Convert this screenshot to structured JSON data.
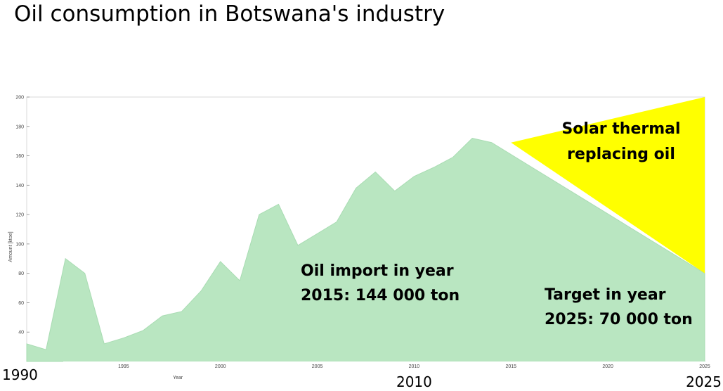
{
  "title": "Oil consumption in Botswana's industry",
  "chart_data": {
    "type": "area",
    "title": "Oil consumption in Botswana's industry",
    "xlabel": "Year",
    "ylabel": "Amount [ktoe]",
    "ylim": [
      20,
      200
    ],
    "y_ticks": [
      "40",
      "60",
      "80",
      "100",
      "120",
      "140",
      "160",
      "180",
      "200"
    ],
    "x_ticks_small": [
      "1995",
      "2000",
      "2005",
      "2010",
      "2015",
      "2020",
      "2025"
    ],
    "x_ticks_large": [
      "1990",
      "2010",
      "2025"
    ],
    "grid": false,
    "colors": {
      "area": "#b9e6c1",
      "solar": "#ffff00"
    },
    "series": [
      {
        "name": "Oil import",
        "x": [
          1990,
          1991,
          1992,
          1993,
          1994,
          1995,
          1996,
          1997,
          1998,
          1999,
          2000,
          2001,
          2002,
          2003,
          2004,
          2005,
          2006,
          2007,
          2008,
          2009,
          2010,
          2011,
          2012,
          2013,
          2014,
          2025
        ],
        "values": [
          32,
          28,
          90,
          80,
          32,
          36,
          41,
          51,
          54,
          68,
          88,
          75,
          120,
          127,
          99,
          107,
          115,
          138,
          149,
          136,
          146,
          152,
          159,
          172,
          169,
          80
        ]
      },
      {
        "name": "Solar thermal replacing oil",
        "x": [
          2015,
          2025
        ],
        "values": [
          169,
          200
        ],
        "lower": [
          169,
          80
        ]
      }
    ],
    "annotations": {
      "oil_import": [
        "Oil import in year",
        "2015: 144 000 ton"
      ],
      "target": [
        "Target in year",
        "2025: 70 000 ton"
      ],
      "solar": [
        "Solar thermal",
        "replacing oil"
      ]
    }
  }
}
